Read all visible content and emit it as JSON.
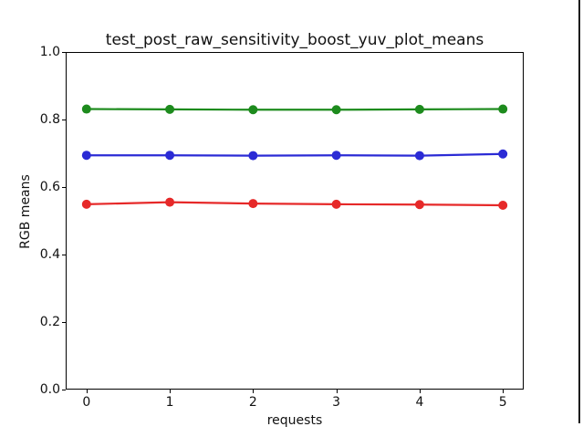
{
  "figure": {
    "title": "test_post_raw_sensitivity_boost_yuv_plot_means",
    "xlabel": "requests",
    "ylabel": "RGB means"
  },
  "chart_data": {
    "type": "line",
    "title": "test_post_raw_sensitivity_boost_yuv_plot_means",
    "xlabel": "requests",
    "ylabel": "RGB means",
    "x": [
      0,
      1,
      2,
      3,
      4,
      5
    ],
    "series": [
      {
        "name": "green",
        "color": "#1d8b1d",
        "values": [
          0.831,
          0.83,
          0.829,
          0.829,
          0.83,
          0.831
        ]
      },
      {
        "name": "blue",
        "color": "#2b2bd5",
        "values": [
          0.694,
          0.694,
          0.693,
          0.694,
          0.693,
          0.698
        ]
      },
      {
        "name": "red",
        "color": "#e62929",
        "values": [
          0.549,
          0.555,
          0.551,
          0.549,
          0.548,
          0.546
        ]
      }
    ],
    "xticks": [
      "0",
      "1",
      "2",
      "3",
      "4",
      "5"
    ],
    "xtick_values": [
      0,
      1,
      2,
      3,
      4,
      5
    ],
    "yticks": [
      "0.0",
      "0.2",
      "0.4",
      "0.6",
      "0.8",
      "1.0"
    ],
    "ytick_values": [
      0.0,
      0.2,
      0.4,
      0.6,
      0.8,
      1.0
    ],
    "xlim": [
      -0.25,
      5.25
    ],
    "ylim": [
      0.0,
      1.0
    ],
    "grid": false,
    "legend": null,
    "marker": "circle",
    "line_width": 2.2,
    "marker_radius": 5
  }
}
